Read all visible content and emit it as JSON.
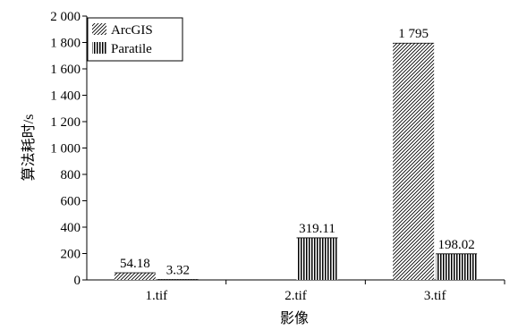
{
  "chart_data": {
    "type": "bar",
    "xlabel": "影像",
    "ylabel": "算法耗时/s",
    "ylim": [
      0,
      2000
    ],
    "yticks": [
      0,
      200,
      400,
      600,
      800,
      1000,
      1200,
      1400,
      1600,
      1800,
      2000
    ],
    "ytick_labels": [
      "0",
      "200",
      "400",
      "600",
      "800",
      "1 000",
      "1 200",
      "1 400",
      "1 600",
      "1 800",
      "2 000"
    ],
    "categories": [
      "1.tif",
      "2.tif",
      "3.tif"
    ],
    "series": [
      {
        "name": "ArcGIS",
        "pattern": "diagonal-hatch",
        "values": [
          54.18,
          null,
          1795
        ],
        "labels": [
          "54.18",
          "",
          "1 795"
        ]
      },
      {
        "name": "Paratile",
        "pattern": "vertical-lines",
        "values": [
          3.32,
          319.11,
          198.02
        ],
        "labels": [
          "3.32",
          "319.11",
          "198.02"
        ]
      }
    ],
    "legend": "top-left",
    "grid": false
  }
}
